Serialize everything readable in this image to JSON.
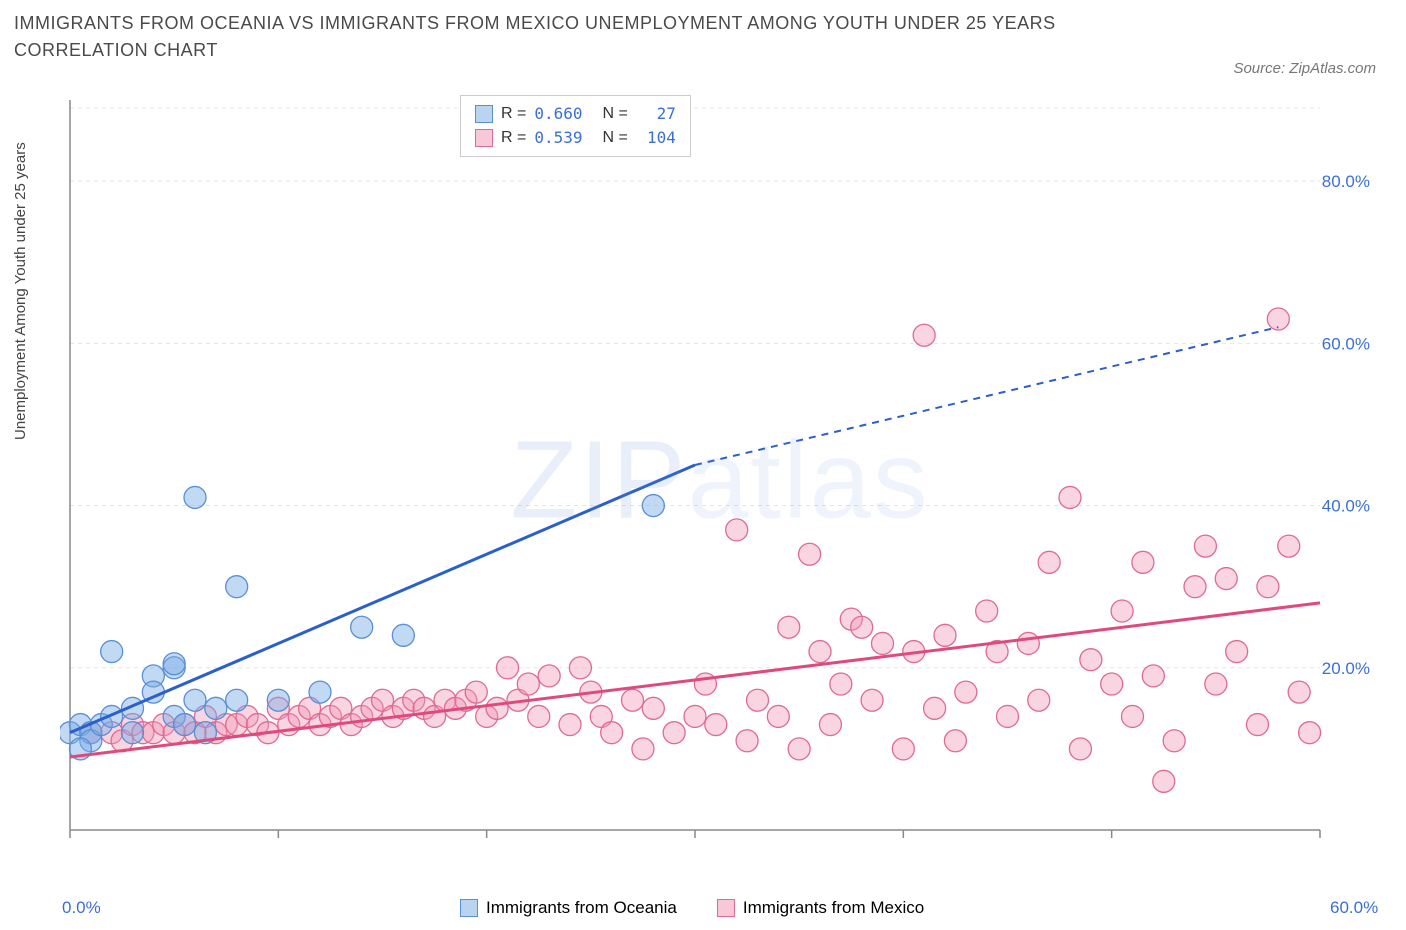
{
  "title": "IMMIGRANTS FROM OCEANIA VS IMMIGRANTS FROM MEXICO UNEMPLOYMENT AMONG YOUTH UNDER 25 YEARS CORRELATION CHART",
  "source": "Source: ZipAtlas.com",
  "watermark_a": "ZIP",
  "watermark_b": "atlas",
  "ylabel": "Unemployment Among Youth under 25 years",
  "chart": {
    "type": "scatter",
    "xlim": [
      0,
      60
    ],
    "ylim": [
      0,
      90
    ],
    "xticks": [
      0,
      10,
      20,
      30,
      40,
      50,
      60
    ],
    "xtick_labels": [
      "0.0%",
      "",
      "",
      "",
      "",
      "",
      "60.0%"
    ],
    "yticks": [
      20,
      40,
      60,
      80
    ],
    "ytick_labels": [
      "20.0%",
      "40.0%",
      "60.0%",
      "80.0%"
    ],
    "background_color": "#ffffff",
    "grid_color": "#e5e5e5",
    "axis_color": "#888888",
    "tick_color": "#3b6fd6",
    "font_size_ticks": 17,
    "font_size_title": 18,
    "font_size_label": 15,
    "series": [
      {
        "name": "Immigrants from Oceania",
        "color_fill": "rgba(120,170,230,0.45)",
        "color_stroke": "#5a8fd6",
        "swatch_fill": "#b9d4f0",
        "swatch_border": "#5a8fd6",
        "marker_radius": 11,
        "R": "0.660",
        "N": "27",
        "trend": {
          "x1": 0,
          "y1": 12,
          "x2": 30,
          "y2": 45,
          "dash_from_x": 30,
          "x3": 58,
          "y3": 62,
          "color": "#2b5fc9",
          "width": 3
        },
        "points": [
          [
            0,
            12
          ],
          [
            0.5,
            13
          ],
          [
            1,
            12
          ],
          [
            1,
            11
          ],
          [
            1.5,
            13
          ],
          [
            2,
            14
          ],
          [
            2,
            22
          ],
          [
            3,
            12
          ],
          [
            3,
            15
          ],
          [
            4,
            19
          ],
          [
            4,
            17
          ],
          [
            5,
            20
          ],
          [
            5,
            20.5
          ],
          [
            5,
            14
          ],
          [
            5.5,
            13
          ],
          [
            6,
            16
          ],
          [
            6.5,
            12
          ],
          [
            7,
            15
          ],
          [
            8,
            30
          ],
          [
            8,
            16
          ],
          [
            6,
            41
          ],
          [
            10,
            16
          ],
          [
            12,
            17
          ],
          [
            14,
            25
          ],
          [
            16,
            24
          ],
          [
            28,
            40
          ],
          [
            0.5,
            10
          ]
        ]
      },
      {
        "name": "Immigrants from Mexico",
        "color_fill": "rgba(240,150,180,0.4)",
        "color_stroke": "#e06a94",
        "swatch_fill": "#f8c8d8",
        "swatch_border": "#e06a94",
        "marker_radius": 11,
        "R": "0.539",
        "N": "104",
        "trend": {
          "x1": 0,
          "y1": 9,
          "x2": 60,
          "y2": 28,
          "color": "#e04a7a",
          "width": 3
        },
        "points": [
          [
            1,
            12
          ],
          [
            2,
            12
          ],
          [
            2.5,
            11
          ],
          [
            3,
            13
          ],
          [
            3.5,
            12
          ],
          [
            4,
            12
          ],
          [
            4.5,
            13
          ],
          [
            5,
            12
          ],
          [
            5.5,
            13
          ],
          [
            6,
            12
          ],
          [
            6.5,
            14
          ],
          [
            7,
            12
          ],
          [
            7.5,
            13
          ],
          [
            8,
            13
          ],
          [
            8.5,
            14
          ],
          [
            9,
            13
          ],
          [
            9.5,
            12
          ],
          [
            10,
            15
          ],
          [
            10.5,
            13
          ],
          [
            11,
            14
          ],
          [
            11.5,
            15
          ],
          [
            12,
            13
          ],
          [
            12.5,
            14
          ],
          [
            13,
            15
          ],
          [
            13.5,
            13
          ],
          [
            14,
            14
          ],
          [
            14.5,
            15
          ],
          [
            15,
            16
          ],
          [
            15.5,
            14
          ],
          [
            16,
            15
          ],
          [
            16.5,
            16
          ],
          [
            17,
            15
          ],
          [
            17.5,
            14
          ],
          [
            18,
            16
          ],
          [
            18.5,
            15
          ],
          [
            19,
            16
          ],
          [
            19.5,
            17
          ],
          [
            20,
            14
          ],
          [
            20.5,
            15
          ],
          [
            21,
            20
          ],
          [
            21.5,
            16
          ],
          [
            22,
            18
          ],
          [
            22.5,
            14
          ],
          [
            23,
            19
          ],
          [
            24,
            13
          ],
          [
            24.5,
            20
          ],
          [
            25,
            17
          ],
          [
            25.5,
            14
          ],
          [
            26,
            12
          ],
          [
            27,
            16
          ],
          [
            27.5,
            10
          ],
          [
            28,
            15
          ],
          [
            29,
            12
          ],
          [
            30,
            14
          ],
          [
            30.5,
            18
          ],
          [
            31,
            13
          ],
          [
            32,
            37
          ],
          [
            32.5,
            11
          ],
          [
            33,
            16
          ],
          [
            34,
            14
          ],
          [
            34.5,
            25
          ],
          [
            35,
            10
          ],
          [
            35.5,
            34
          ],
          [
            36,
            22
          ],
          [
            36.5,
            13
          ],
          [
            37,
            18
          ],
          [
            37.5,
            26
          ],
          [
            38,
            25
          ],
          [
            38.5,
            16
          ],
          [
            39,
            23
          ],
          [
            40,
            10
          ],
          [
            40.5,
            22
          ],
          [
            41,
            61
          ],
          [
            41.5,
            15
          ],
          [
            42,
            24
          ],
          [
            42.5,
            11
          ],
          [
            43,
            17
          ],
          [
            44,
            27
          ],
          [
            44.5,
            22
          ],
          [
            45,
            14
          ],
          [
            46,
            23
          ],
          [
            46.5,
            16
          ],
          [
            47,
            33
          ],
          [
            48,
            41
          ],
          [
            48.5,
            10
          ],
          [
            49,
            21
          ],
          [
            50,
            18
          ],
          [
            50.5,
            27
          ],
          [
            51,
            14
          ],
          [
            51.5,
            33
          ],
          [
            52,
            19
          ],
          [
            52.5,
            6
          ],
          [
            53,
            11
          ],
          [
            54,
            30
          ],
          [
            54.5,
            35
          ],
          [
            55,
            18
          ],
          [
            55.5,
            31
          ],
          [
            56,
            22
          ],
          [
            57,
            13
          ],
          [
            57.5,
            30
          ],
          [
            58,
            63
          ],
          [
            58.5,
            35
          ],
          [
            59,
            17
          ],
          [
            59.5,
            12
          ]
        ]
      }
    ],
    "legend_bottom": [
      {
        "label": "Immigrants from Oceania",
        "swatch_fill": "#b9d4f0",
        "swatch_border": "#5a8fd6"
      },
      {
        "label": "Immigrants from Mexico",
        "swatch_fill": "#f8c8d8",
        "swatch_border": "#e06a94"
      }
    ]
  }
}
